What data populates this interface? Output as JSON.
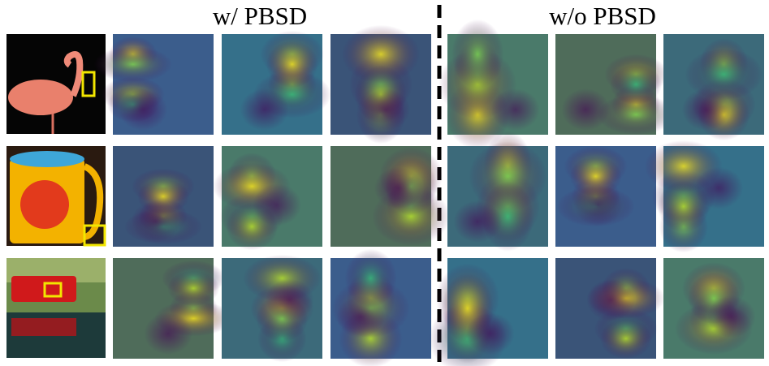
{
  "headings": {
    "with": "w/ PBSD",
    "without": "w/o PBSD"
  }
}
